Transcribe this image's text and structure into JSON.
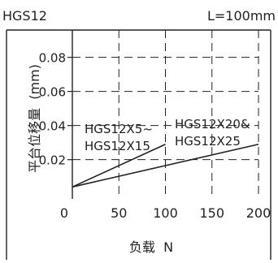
{
  "header": {
    "model": "HGS12",
    "length": "L=100mm"
  },
  "chart_data": {
    "type": "line",
    "title": "",
    "xlabel": "负载  N",
    "ylabel": "平台位移量  (mm)",
    "xlim": [
      0,
      200
    ],
    "ylim": [
      -0.003,
      0.096
    ],
    "x_ticks": [
      0,
      50,
      100,
      150,
      200
    ],
    "x_tick_labels": [
      "0",
      "50",
      "100",
      "150",
      "200"
    ],
    "y_ticks": [
      0.02,
      0.04,
      0.06,
      0.08
    ],
    "y_tick_labels": [
      "0.02",
      "0.04",
      "0.06",
      "0.08"
    ],
    "grid": "dashed",
    "colors": {
      "line": "#222222",
      "grid": "#222222",
      "background": "#ffffff"
    },
    "series": [
      {
        "name": "HGS12X5~HGS12X15",
        "label_lines": [
          "HGS12X5~",
          "HGS12X15"
        ],
        "x": [
          0,
          100
        ],
        "y": [
          0.004,
          0.029
        ]
      },
      {
        "name": "HGS12X20&HGS12X25",
        "label_lines": [
          "HGS12X20&",
          "HGS12X25"
        ],
        "x": [
          0,
          200
        ],
        "y": [
          0.004,
          0.029
        ]
      }
    ]
  }
}
